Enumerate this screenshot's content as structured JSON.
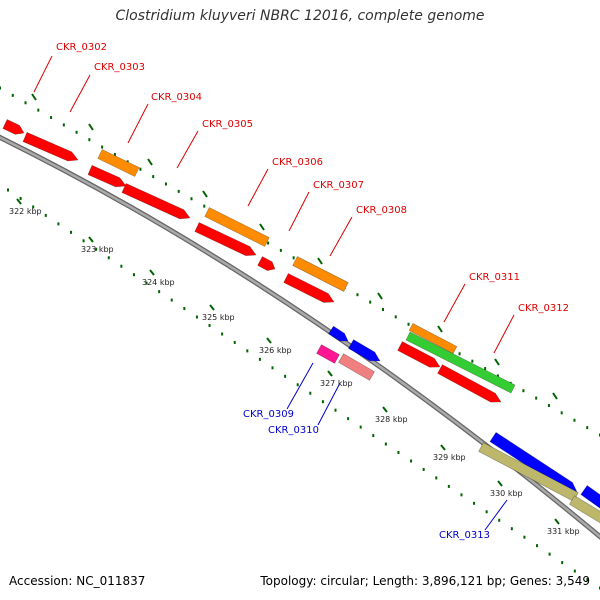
{
  "title": "Clostridium kluyveri NBRC 12016, complete genome",
  "footer": {
    "accession": "Accession: NC_011837",
    "summary": "Topology: circular; Length: 3,896,121 bp; Genes: 3,549"
  },
  "colors": {
    "red": "#ff0000",
    "orange": "#ff8c00",
    "green": "#33cc33",
    "blue": "#0000ff",
    "magenta": "#ff1493",
    "pink": "#f08080",
    "khaki": "#bdb76b",
    "label_red": "#dd0000",
    "label_blue": "#0000cc",
    "backbone": "#888888",
    "ticks": "#006400"
  },
  "kbp_labels": [
    "322 kbp",
    "323 kbp",
    "324 kbp",
    "325 kbp",
    "326 kbp",
    "327 kbp",
    "328 kbp",
    "329 kbp",
    "330 kbp",
    "331 kbp"
  ],
  "gene_labels": [
    "CKR_0302",
    "CKR_0303",
    "CKR_0304",
    "CKR_0305",
    "CKR_0306",
    "CKR_0307",
    "CKR_0308",
    "CKR_0309",
    "CKR_0310",
    "CKR_0311",
    "CKR_0312",
    "CKR_0313"
  ]
}
